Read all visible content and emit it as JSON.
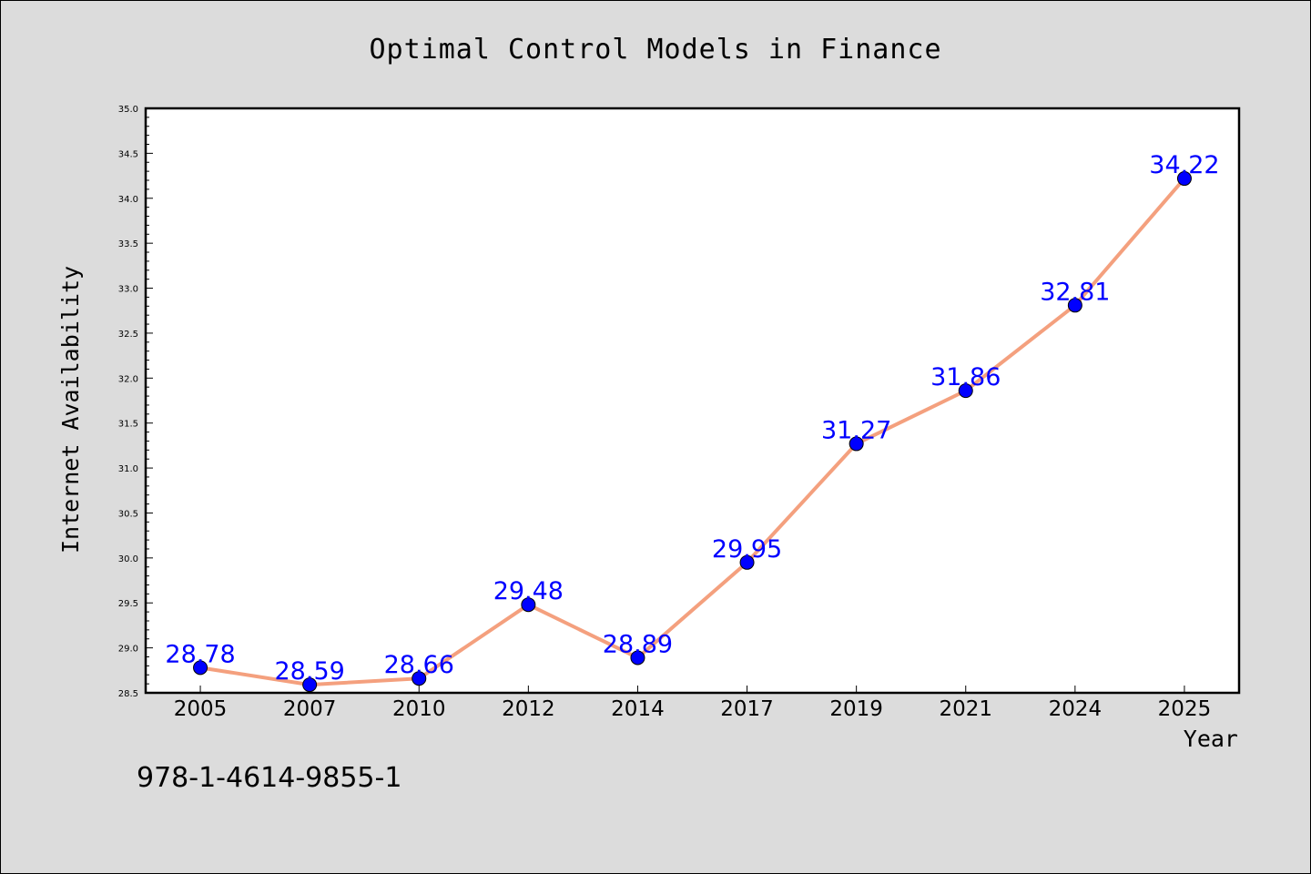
{
  "chart_data": {
    "type": "line",
    "title": "Optimal Control Models in Finance",
    "xlabel": "Year",
    "ylabel": "Internet Availability",
    "categories": [
      "2005",
      "2007",
      "2010",
      "2012",
      "2014",
      "2017",
      "2019",
      "2021",
      "2024",
      "2025"
    ],
    "series": [
      {
        "values": [
          28.78,
          28.59,
          28.66,
          29.48,
          28.89,
          29.95,
          31.27,
          31.86,
          32.81,
          34.22
        ],
        "labels": [
          "28.78",
          "28.59",
          "28.66",
          "29.48",
          "28.89",
          "29.95",
          "31.27",
          "31.86",
          "32.81",
          "34.22"
        ]
      }
    ],
    "ylim": [
      28.5,
      35.0
    ],
    "yticks": [
      "28.5",
      "29.0",
      "29.5",
      "30.0",
      "30.5",
      "31.0",
      "31.5",
      "32.0",
      "32.5",
      "33.0",
      "33.5",
      "34.0",
      "34.5",
      "35.0"
    ],
    "grid": false,
    "line_color": "#f4a07e",
    "marker_color": "#0000ff",
    "label_color": "#0000ff",
    "background_color": "#dcdcdc",
    "plot_background": "#ffffff"
  },
  "footer": {
    "isbn": "978-1-4614-9855-1"
  }
}
